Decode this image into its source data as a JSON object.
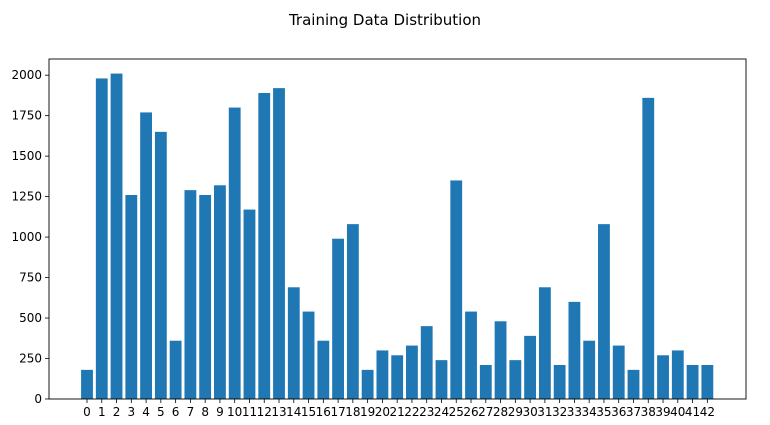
{
  "chart_data": {
    "type": "bar",
    "title": "Training Data Distribution",
    "xlabel": "",
    "ylabel": "",
    "categories": [
      "0",
      "1",
      "2",
      "3",
      "4",
      "5",
      "6",
      "7",
      "8",
      "9",
      "10",
      "11",
      "12",
      "13",
      "14",
      "15",
      "16",
      "17",
      "18",
      "19",
      "20",
      "21",
      "22",
      "23",
      "24",
      "25",
      "26",
      "27",
      "28",
      "29",
      "30",
      "31",
      "32",
      "33",
      "34",
      "35",
      "36",
      "37",
      "38",
      "39",
      "40",
      "41",
      "42"
    ],
    "values": [
      180,
      1980,
      2010,
      1260,
      1770,
      1650,
      360,
      1290,
      1260,
      1320,
      1800,
      1170,
      1890,
      1920,
      690,
      540,
      360,
      990,
      1080,
      180,
      300,
      270,
      330,
      450,
      240,
      1350,
      540,
      210,
      480,
      240,
      390,
      690,
      210,
      600,
      360,
      1080,
      330,
      180,
      1860,
      270,
      300,
      210,
      210
    ],
    "ylim": [
      0,
      2100
    ],
    "yticks": [
      0,
      250,
      500,
      750,
      1000,
      1250,
      1500,
      1750,
      2000
    ],
    "bar_color": "#1f77b4",
    "grid": false,
    "legend": "none"
  }
}
